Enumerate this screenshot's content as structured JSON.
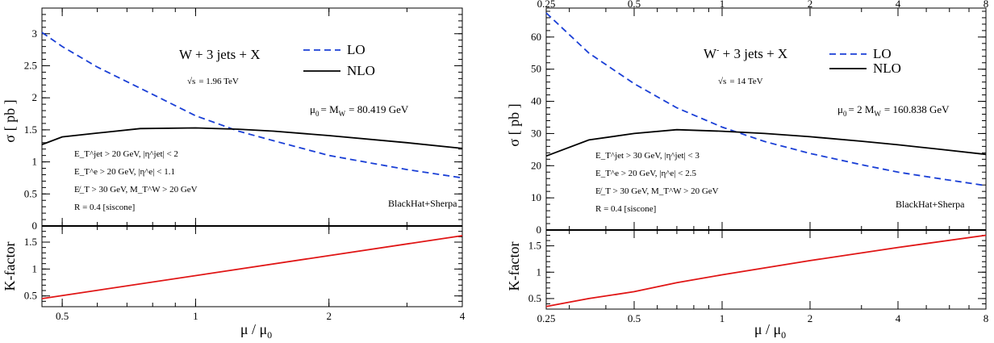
{
  "chart_data": [
    {
      "type": "line",
      "panel": "left",
      "process": "W + 3 jets + X",
      "energy": "= 1.96 TeV",
      "sqrt_s": "√s",
      "mu0_label": "μ",
      "mu0_sub": "0",
      "mu0_text": "= M",
      "mu0_sub2": "W",
      "mu0_value": "= 80.419 GeV",
      "credit": "BlackHat+Sherpa",
      "xlabel": "μ / μ",
      "xlabel_sub": "0",
      "ylabel_top": "σ [ pb ]",
      "ylabel_bottom": "K-factor",
      "xscale": "log",
      "xlim": [
        0.45,
        4
      ],
      "ylim_top": [
        0,
        3.4
      ],
      "ylim_bottom": [
        0.3,
        1.8
      ],
      "xticks": [
        0.5,
        1,
        2,
        4
      ],
      "xtick_labels": [
        "0.5",
        "1",
        "2",
        "4"
      ],
      "yticks_top": [
        0,
        0.5,
        1,
        1.5,
        2,
        2.5,
        3
      ],
      "ytick_labels_top": [
        "0",
        "0.5",
        "1",
        "1.5",
        "2",
        "2.5",
        "3"
      ],
      "yticks_bottom": [
        0.5,
        1,
        1.5
      ],
      "ytick_labels_bottom": [
        "0.5",
        "1",
        "1.5"
      ],
      "cuts": [
        "E_T^jet > 20 GeV, |η^jet| < 2",
        "E_T^e > 20 GeV, |η^e| < 1.1",
        "E̸_T > 30 GeV, M_T^W > 20 GeV",
        "R = 0.4 [siscone]"
      ],
      "series": [
        {
          "name": "LO",
          "color": "#1a3fd6",
          "style": "dashed",
          "panel": "top",
          "x": [
            0.45,
            0.5,
            0.6,
            0.75,
            1.0,
            1.25,
            1.5,
            2.0,
            3.0,
            4.0
          ],
          "values": [
            3.02,
            2.8,
            2.48,
            2.15,
            1.72,
            1.48,
            1.33,
            1.1,
            0.88,
            0.75
          ]
        },
        {
          "name": "NLO",
          "color": "#000000",
          "style": "solid",
          "panel": "top",
          "x": [
            0.45,
            0.5,
            0.6,
            0.75,
            1.0,
            1.25,
            1.5,
            2.0,
            3.0,
            4.0
          ],
          "values": [
            1.27,
            1.39,
            1.45,
            1.52,
            1.53,
            1.51,
            1.48,
            1.41,
            1.3,
            1.21
          ]
        },
        {
          "name": "K-factor",
          "color": "#e01515",
          "style": "solid",
          "panel": "bottom",
          "x": [
            0.45,
            4.0
          ],
          "values": [
            0.45,
            1.62
          ]
        }
      ]
    },
    {
      "type": "line",
      "panel": "right",
      "process": "+ 3 jets + X",
      "process_W": "W",
      "process_sup": "-",
      "energy": "= 14 TeV",
      "sqrt_s": "√s",
      "mu0_label": "μ",
      "mu0_sub": "0",
      "mu0_text": "= 2 M",
      "mu0_sub2": "W",
      "mu0_value": "= 160.838 GeV",
      "credit": "BlackHat+Sherpa",
      "xlabel": "μ / μ",
      "xlabel_sub": "0",
      "ylabel_top": "σ [ pb ]",
      "ylabel_bottom": "K-factor",
      "xscale": "log",
      "xlim": [
        0.25,
        8
      ],
      "ylim_top": [
        0,
        69
      ],
      "ylim_bottom": [
        0.3,
        1.8
      ],
      "xticks": [
        0.25,
        0.5,
        1,
        2,
        4,
        8
      ],
      "xtick_labels": [
        "0.25",
        "0.5",
        "1",
        "2",
        "4",
        "8"
      ],
      "yticks_top": [
        0,
        10,
        20,
        30,
        40,
        50,
        60
      ],
      "ytick_labels_top": [
        "0",
        "10",
        "20",
        "30",
        "40",
        "50",
        "60"
      ],
      "yticks_bottom": [
        0.5,
        1,
        1.5
      ],
      "ytick_labels_bottom": [
        "0.5",
        "1",
        "1.5"
      ],
      "cuts": [
        "E_T^jet > 30 GeV, |η^jet| < 3",
        "E_T^e > 20 GeV, |η^e| < 2.5",
        "E̸_T > 30 GeV, M_T^W > 20 GeV",
        "R = 0.4 [siscone]"
      ],
      "series": [
        {
          "name": "LO",
          "color": "#1a3fd6",
          "style": "dashed",
          "panel": "top",
          "x": [
            0.25,
            0.35,
            0.5,
            0.7,
            1.0,
            1.4,
            2.0,
            3.0,
            4.0,
            5.7,
            8.0
          ],
          "values": [
            67.5,
            55.0,
            45.5,
            38.0,
            32.0,
            27.5,
            23.8,
            20.3,
            18.0,
            15.8,
            13.8
          ]
        },
        {
          "name": "NLO",
          "color": "#000000",
          "style": "solid",
          "panel": "top",
          "x": [
            0.25,
            0.35,
            0.5,
            0.7,
            1.0,
            1.4,
            2.0,
            3.0,
            4.0,
            5.7,
            8.0
          ],
          "values": [
            23.0,
            28.0,
            30.0,
            31.2,
            30.7,
            30.0,
            29.0,
            27.6,
            26.5,
            25.0,
            23.5
          ]
        },
        {
          "name": "K-factor",
          "color": "#e01515",
          "style": "solid",
          "panel": "bottom",
          "x": [
            0.25,
            0.35,
            0.5,
            0.7,
            1.0,
            2.0,
            4.0,
            8.0
          ],
          "values": [
            0.35,
            0.5,
            0.63,
            0.8,
            0.95,
            1.22,
            1.47,
            1.7
          ]
        }
      ]
    }
  ]
}
